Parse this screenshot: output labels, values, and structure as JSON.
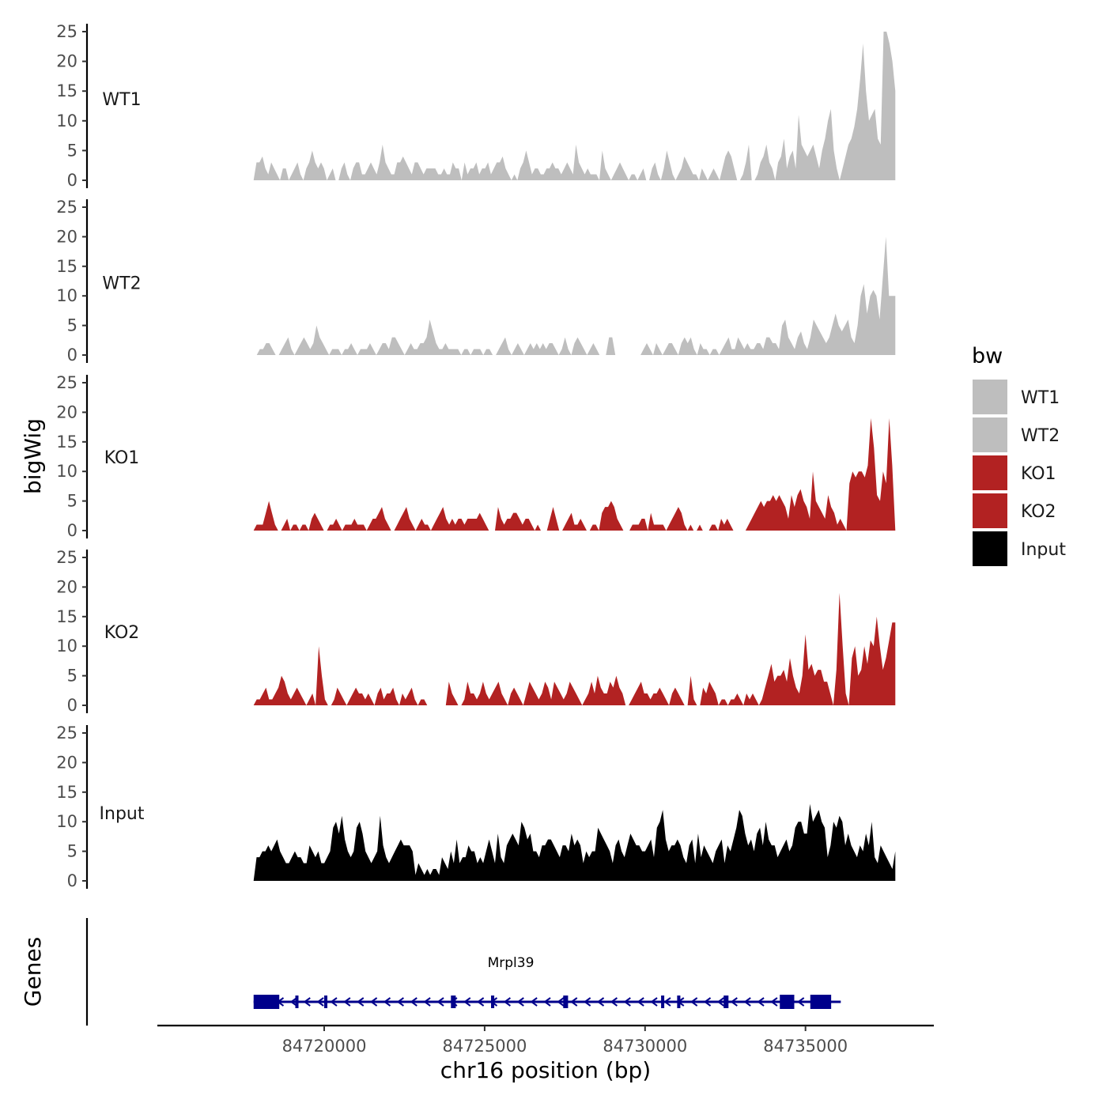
{
  "chart_data": {
    "type": "area",
    "chromosome_label": "chr16 position (bp)",
    "ylabel": "bigWig",
    "genes_label": "Genes",
    "xlim": [
      84714800,
      84739000
    ],
    "ylim": [
      0,
      25
    ],
    "x_ticks": [
      84720000,
      84725000,
      84730000,
      84735000
    ],
    "x_tick_labels": [
      "84720000",
      "84725000",
      "84730000",
      "84735000"
    ],
    "y_ticks": [
      0,
      5,
      10,
      15,
      20,
      25
    ],
    "y_tick_labels": [
      "0",
      "5",
      "10",
      "15",
      "20",
      "25"
    ],
    "region": [
      84717800,
      84737800
    ],
    "legend": {
      "title": "bw",
      "entries": [
        {
          "label": "WT1",
          "color": "#bebebe"
        },
        {
          "label": "WT2",
          "color": "#bebebe"
        },
        {
          "label": "KO1",
          "color": "#b22222"
        },
        {
          "label": "KO2",
          "color": "#b22222"
        },
        {
          "label": "Input",
          "color": "#000000"
        }
      ]
    },
    "series": [
      {
        "name": "WT1",
        "color": "#bebebe",
        "values": [
          0,
          3,
          3,
          4,
          2,
          1,
          3,
          2,
          1,
          0,
          2,
          2,
          0,
          1,
          2,
          3,
          1,
          0,
          2,
          3,
          5,
          3,
          2,
          3,
          2,
          0,
          1,
          2,
          0,
          0,
          2,
          3,
          1,
          0,
          2,
          3,
          3,
          1,
          1,
          2,
          3,
          2,
          1,
          3,
          6,
          3,
          2,
          1,
          1,
          3,
          3,
          4,
          3,
          2,
          1,
          3,
          3,
          2,
          1,
          2,
          2,
          2,
          2,
          1,
          1,
          2,
          1,
          1,
          3,
          2,
          2,
          0,
          3,
          1,
          2,
          2,
          3,
          1,
          2,
          2,
          3,
          1,
          2,
          3,
          3,
          4,
          2,
          1,
          0,
          1,
          0,
          2,
          3,
          5,
          3,
          1,
          2,
          2,
          1,
          1,
          2,
          2,
          3,
          2,
          2,
          1,
          2,
          3,
          2,
          1,
          6,
          3,
          2,
          1,
          2,
          1,
          1,
          1,
          0,
          5,
          2,
          1,
          0,
          1,
          2,
          3,
          2,
          1,
          0,
          1,
          1,
          0,
          1,
          2,
          0,
          0,
          2,
          3,
          1,
          0,
          2,
          5,
          3,
          1,
          0,
          1,
          2,
          4,
          3,
          2,
          1,
          1,
          0,
          2,
          1,
          0,
          1,
          2,
          1,
          0,
          2,
          4,
          5,
          4,
          2,
          0,
          0,
          1,
          3,
          6,
          0,
          0,
          1,
          3,
          4,
          6,
          3,
          2,
          0,
          3,
          4,
          7,
          2,
          4,
          5,
          2,
          11,
          6,
          5,
          4,
          5,
          6,
          4,
          2,
          5,
          7,
          10,
          12,
          5,
          2,
          0,
          2,
          4,
          6,
          7,
          9,
          12,
          17,
          23,
          15,
          10,
          11,
          12,
          7,
          6,
          25,
          25,
          23,
          20,
          15
        ],
        "label_y": 13.7
      },
      {
        "name": "WT2",
        "color": "#bebebe",
        "values": [
          0,
          0,
          1,
          1,
          2,
          2,
          1,
          0,
          0,
          1,
          2,
          3,
          1,
          0,
          1,
          2,
          3,
          2,
          1,
          2,
          5,
          3,
          2,
          1,
          0,
          1,
          1,
          1,
          0,
          1,
          1,
          2,
          1,
          0,
          1,
          1,
          1,
          2,
          1,
          0,
          1,
          2,
          2,
          1,
          3,
          3,
          2,
          1,
          0,
          1,
          2,
          1,
          1,
          2,
          2,
          3,
          6,
          4,
          2,
          1,
          1,
          2,
          1,
          1,
          1,
          1,
          0,
          1,
          1,
          0,
          1,
          1,
          1,
          0,
          1,
          1,
          0,
          0,
          1,
          2,
          3,
          1,
          0,
          1,
          2,
          1,
          0,
          1,
          2,
          1,
          2,
          1,
          2,
          1,
          2,
          2,
          1,
          0,
          1,
          3,
          1,
          0,
          2,
          3,
          2,
          1,
          0,
          1,
          2,
          1,
          0,
          0,
          0,
          3,
          3,
          0,
          0,
          0,
          0,
          0,
          0,
          0,
          0,
          0,
          1,
          2,
          1,
          0,
          2,
          1,
          0,
          1,
          2,
          2,
          1,
          0,
          2,
          3,
          2,
          3,
          1,
          0,
          2,
          1,
          1,
          0,
          1,
          1,
          0,
          1,
          2,
          3,
          1,
          1,
          3,
          2,
          1,
          2,
          1,
          1,
          2,
          2,
          1,
          3,
          3,
          2,
          2,
          1,
          5,
          6,
          3,
          2,
          1,
          3,
          4,
          2,
          1,
          3,
          6,
          5,
          4,
          3,
          2,
          3,
          5,
          7,
          5,
          4,
          5,
          6,
          3,
          2,
          5,
          10,
          12,
          7,
          10,
          11,
          10,
          6,
          13,
          20,
          10,
          10,
          10
        ],
        "label_y": 12.2
      },
      {
        "name": "KO1",
        "color": "#b22222",
        "values": [
          0,
          1,
          1,
          1,
          3,
          5,
          3,
          1,
          0,
          0,
          1,
          2,
          0,
          1,
          1,
          0,
          1,
          1,
          0,
          2,
          3,
          2,
          1,
          0,
          0,
          1,
          1,
          2,
          1,
          0,
          1,
          1,
          1,
          2,
          1,
          1,
          1,
          0,
          1,
          2,
          2,
          3,
          4,
          2,
          1,
          0,
          0,
          1,
          2,
          3,
          4,
          2,
          1,
          0,
          1,
          2,
          1,
          1,
          0,
          1,
          2,
          3,
          4,
          2,
          1,
          2,
          1,
          2,
          2,
          1,
          2,
          2,
          2,
          2,
          3,
          2,
          1,
          0,
          0,
          0,
          4,
          2,
          1,
          2,
          2,
          3,
          3,
          2,
          1,
          2,
          2,
          1,
          0,
          1,
          0,
          0,
          0,
          2,
          4,
          2,
          0,
          0,
          1,
          2,
          3,
          1,
          1,
          2,
          1,
          0,
          0,
          1,
          1,
          0,
          3,
          4,
          4,
          5,
          4,
          2,
          1,
          0,
          0,
          0,
          1,
          1,
          1,
          2,
          2,
          0,
          3,
          1,
          1,
          1,
          1,
          0,
          1,
          2,
          3,
          4,
          3,
          1,
          0,
          1,
          0,
          0,
          1,
          0,
          0,
          0,
          1,
          1,
          0,
          2,
          1,
          2,
          1,
          0,
          0,
          0,
          0,
          0,
          1,
          2,
          3,
          4,
          5,
          4,
          5,
          5,
          6,
          5,
          6,
          5,
          4,
          2,
          6,
          4,
          6,
          7,
          5,
          4,
          2,
          10,
          5,
          4,
          3,
          2,
          6,
          4,
          3,
          1,
          2,
          1,
          0,
          8,
          10,
          9,
          10,
          10,
          9,
          11,
          19,
          14,
          6,
          5,
          10,
          8,
          19,
          11,
          0
        ],
        "label_y": 12.4
      },
      {
        "name": "KO2",
        "color": "#b22222",
        "values": [
          0,
          1,
          1,
          2,
          3,
          1,
          1,
          2,
          3,
          5,
          4,
          2,
          1,
          2,
          3,
          2,
          1,
          0,
          1,
          2,
          0,
          10,
          5,
          1,
          0,
          0,
          1,
          3,
          2,
          1,
          0,
          1,
          2,
          3,
          2,
          2,
          1,
          2,
          1,
          0,
          2,
          3,
          1,
          2,
          2,
          3,
          1,
          0,
          2,
          1,
          2,
          3,
          1,
          0,
          1,
          1,
          0,
          0,
          0,
          0,
          0,
          0,
          0,
          4,
          2,
          1,
          0,
          0,
          1,
          4,
          2,
          2,
          1,
          2,
          4,
          2,
          1,
          2,
          3,
          4,
          2,
          1,
          0,
          2,
          3,
          2,
          1,
          0,
          2,
          4,
          3,
          2,
          1,
          2,
          4,
          3,
          1,
          4,
          3,
          2,
          1,
          2,
          4,
          3,
          2,
          1,
          0,
          1,
          2,
          4,
          2,
          5,
          3,
          2,
          2,
          4,
          3,
          5,
          3,
          2,
          0,
          0,
          1,
          2,
          3,
          4,
          2,
          2,
          1,
          2,
          2,
          3,
          2,
          1,
          0,
          2,
          3,
          2,
          1,
          0,
          0,
          5,
          1,
          0,
          0,
          3,
          2,
          4,
          3,
          2,
          0,
          1,
          1,
          0,
          1,
          1,
          2,
          1,
          0,
          2,
          1,
          2,
          1,
          0,
          1,
          3,
          5,
          7,
          4,
          5,
          5,
          6,
          4,
          8,
          5,
          3,
          2,
          5,
          12,
          6,
          7,
          5,
          6,
          6,
          4,
          4,
          2,
          0,
          6,
          19,
          10,
          2,
          0,
          8,
          10,
          5,
          6,
          10,
          7,
          11,
          10,
          15,
          10,
          6,
          8,
          11,
          14,
          14
        ],
        "label_y": 12.4
      },
      {
        "name": "Input",
        "color": "#000000",
        "values": [
          0,
          4,
          4,
          5,
          5,
          6,
          5,
          6,
          7,
          5,
          4,
          3,
          3,
          4,
          5,
          4,
          4,
          3,
          3,
          6,
          5,
          4,
          5,
          3,
          3,
          4,
          5,
          9,
          10,
          8,
          11,
          7,
          5,
          4,
          5,
          9,
          10,
          8,
          5,
          4,
          3,
          4,
          5,
          11,
          6,
          4,
          3,
          4,
          5,
          6,
          7,
          6,
          6,
          6,
          5,
          1,
          3,
          2,
          1,
          2,
          1,
          2,
          2,
          1,
          4,
          3,
          2,
          5,
          3,
          7,
          3,
          4,
          4,
          6,
          5,
          5,
          3,
          4,
          3,
          5,
          7,
          5,
          3,
          8,
          4,
          3,
          6,
          7,
          8,
          7,
          6,
          10,
          9,
          7,
          8,
          5,
          5,
          4,
          6,
          6,
          7,
          7,
          6,
          5,
          4,
          6,
          6,
          5,
          8,
          6,
          7,
          6,
          3,
          5,
          4,
          5,
          5,
          9,
          8,
          7,
          6,
          5,
          3,
          6,
          7,
          5,
          4,
          6,
          8,
          7,
          6,
          6,
          5,
          5,
          6,
          7,
          4,
          9,
          10,
          12,
          7,
          5,
          6,
          6,
          7,
          6,
          4,
          3,
          6,
          7,
          3,
          8,
          4,
          6,
          5,
          4,
          3,
          5,
          6,
          7,
          3,
          6,
          5,
          7,
          9,
          12,
          11,
          8,
          6,
          7,
          5,
          8,
          9,
          6,
          10,
          7,
          6,
          6,
          4,
          5,
          6,
          7,
          5,
          6,
          9,
          10,
          10,
          8,
          8,
          13,
          10,
          11,
          12,
          10,
          9,
          4,
          6,
          10,
          9,
          11,
          10,
          6,
          8,
          6,
          5,
          4,
          6,
          5,
          8,
          6,
          10,
          4,
          3,
          6,
          5,
          4,
          3,
          2,
          5
        ]
      }
    ],
    "gene": {
      "name": "Mrpl39",
      "strand": "-",
      "start": 84717800,
      "end": 84736100,
      "exons": [
        [
          84717800,
          84718600
        ],
        [
          84719100,
          84719150
        ],
        [
          84720000,
          84720050
        ],
        [
          84723950,
          84724100
        ],
        [
          84725200,
          84725300
        ],
        [
          84727450,
          84727600
        ],
        [
          84730500,
          84730560
        ],
        [
          84731000,
          84731100
        ],
        [
          84732450,
          84732600
        ],
        [
          84734200,
          84734650
        ],
        [
          84735150,
          84735800
        ]
      ]
    }
  }
}
